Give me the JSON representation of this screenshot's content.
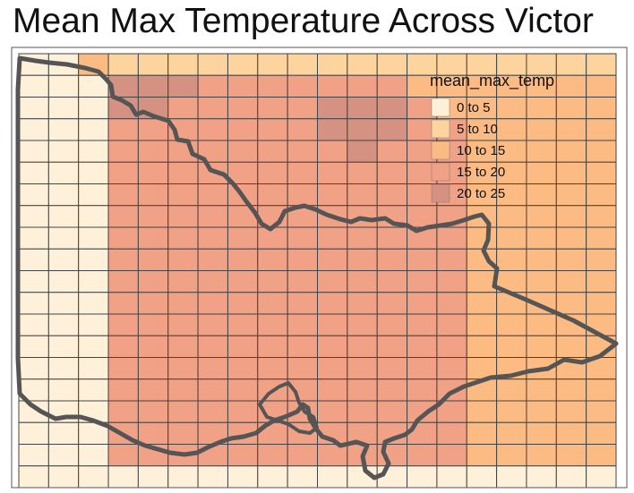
{
  "title": "Mean Max Temperature Across Victor",
  "legend": {
    "title": "mean_max_temp",
    "items": [
      {
        "label": "0 to 5",
        "color": "#FEF0D9"
      },
      {
        "label": "5 to 10",
        "color": "#FDD49E"
      },
      {
        "label": "10 to 15",
        "color": "#FDBB84"
      },
      {
        "label": "15 to 20",
        "color": "#F0A186"
      },
      {
        "label": "20 to 25",
        "color": "#D59283"
      }
    ]
  },
  "grid": {
    "columns": 20,
    "rows": 20,
    "class_values": [
      "00211111111111111111",
      "00044433333332222222",
      "00044333334443222222",
      "00033333334443322222",
      "00033333333433322222",
      "00033333333333322222",
      "00033333333333322222",
      "00033333333333322222",
      "00033333333333322222",
      "00033333333333322222",
      "00033333333333322222",
      "00033333333333322222",
      "00033333333333322222",
      "00033333333333322222",
      "00033333333333322222",
      "00033333333333322222",
      "00033333333333322222",
      "00033333333333322222",
      "00033333333333322222",
      "00000000000000000000"
    ]
  }
}
